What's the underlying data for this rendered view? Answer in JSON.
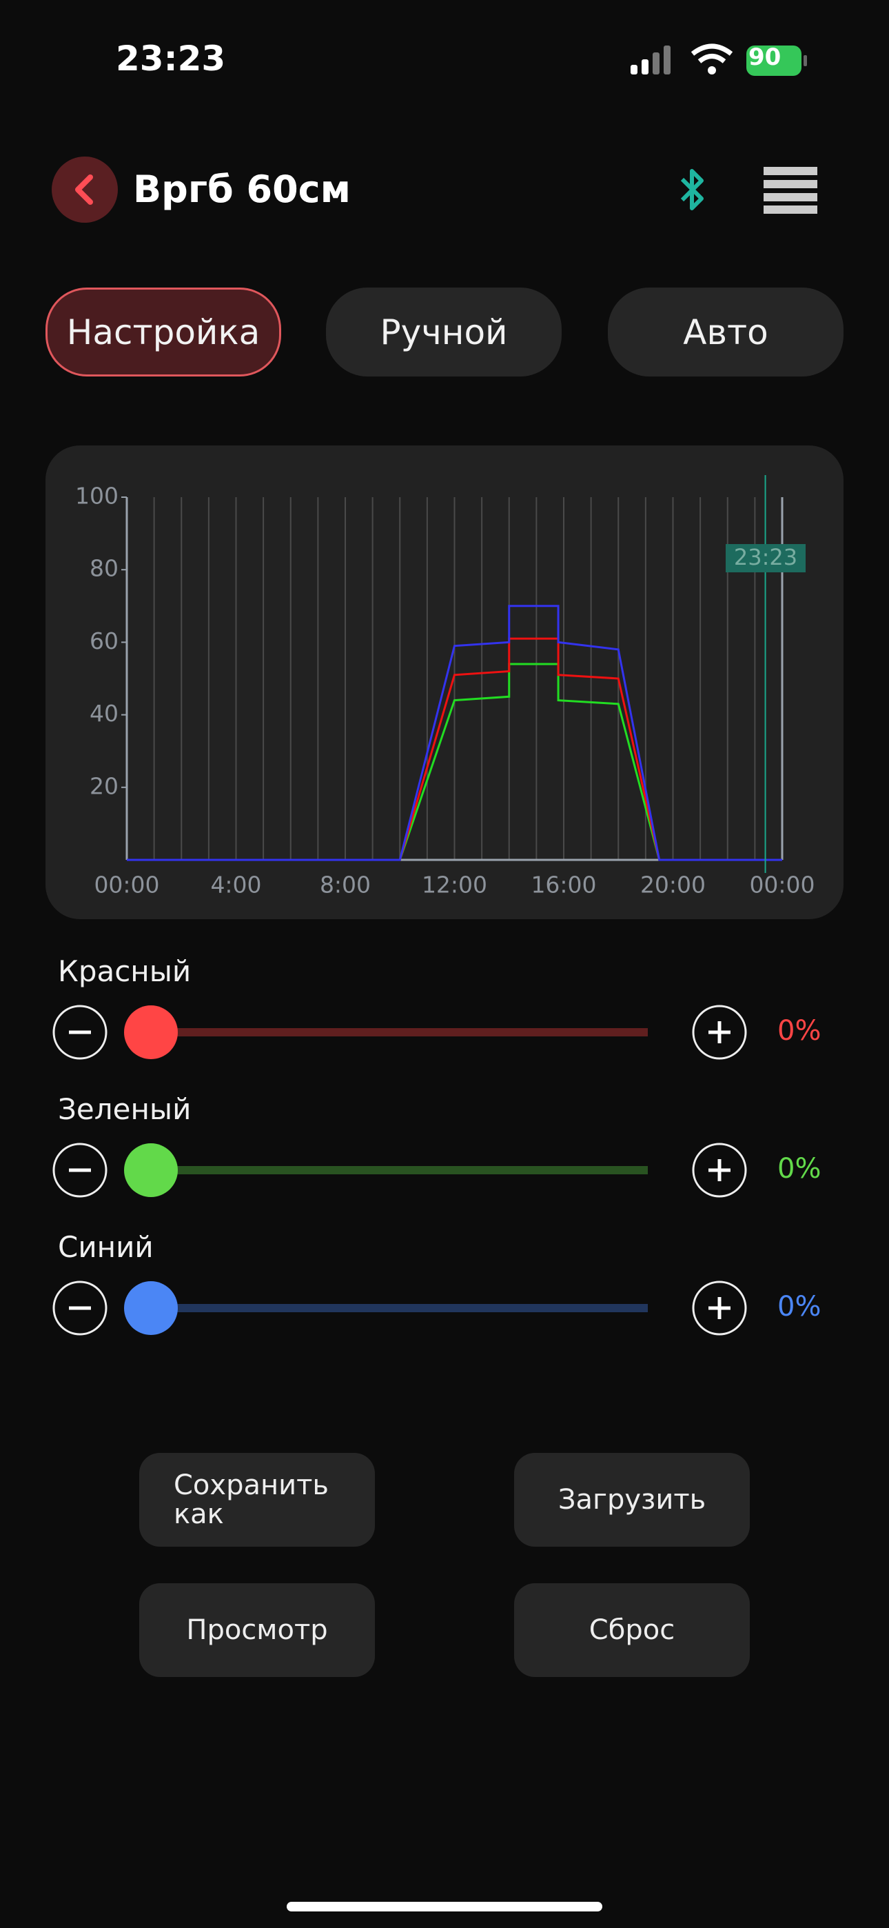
{
  "status_bar": {
    "time": "23:23",
    "battery": "90"
  },
  "header": {
    "title": "Вргб 60см"
  },
  "tabs": [
    {
      "label": "Настройка",
      "active": true
    },
    {
      "label": "Ручной"
    },
    {
      "label": "Авто"
    }
  ],
  "chart": {
    "type": "line",
    "x": [
      0,
      10,
      12,
      14,
      14,
      15.8,
      15.8,
      18,
      19.5,
      24
    ],
    "series": [
      {
        "color": "#22dd22",
        "values": [
          0,
          0,
          44,
          45,
          54,
          54,
          44,
          43,
          0,
          0
        ]
      },
      {
        "color": "#ee1111",
        "values": [
          0,
          0,
          51,
          52,
          61,
          61,
          51,
          50,
          0,
          0
        ]
      },
      {
        "color": "#3333ee",
        "values": [
          0,
          0,
          59,
          60,
          70,
          70,
          60,
          58,
          0,
          0
        ]
      }
    ],
    "xlim": [
      0,
      24
    ],
    "xticks": [
      {
        "value": 0,
        "label": "00:00"
      },
      {
        "value": 1,
        "label": null
      },
      {
        "value": 2,
        "label": null
      },
      {
        "value": 3,
        "label": null
      },
      {
        "value": 4,
        "label": "4:00"
      },
      {
        "value": 5,
        "label": null
      },
      {
        "value": 6,
        "label": null
      },
      {
        "value": 7,
        "label": null
      },
      {
        "value": 8,
        "label": "8:00"
      },
      {
        "value": 9,
        "label": null
      },
      {
        "value": 10,
        "label": null
      },
      {
        "value": 11,
        "label": null
      },
      {
        "value": 12,
        "label": "12:00"
      },
      {
        "value": 13,
        "label": null
      },
      {
        "value": 14,
        "label": null
      },
      {
        "value": 15,
        "label": null
      },
      {
        "value": 16,
        "label": "16:00"
      },
      {
        "value": 17,
        "label": null
      },
      {
        "value": 18,
        "label": null
      },
      {
        "value": 19,
        "label": null
      },
      {
        "value": 20,
        "label": "20:00"
      },
      {
        "value": 21,
        "label": null
      },
      {
        "value": 22,
        "label": null
      },
      {
        "value": 23,
        "label": null
      },
      {
        "value": 24,
        "label": "00:00"
      }
    ],
    "ylim": [
      0,
      100
    ],
    "yticks": [
      20,
      40,
      60,
      80,
      100
    ],
    "grid": "x",
    "now": {
      "value": 23.383,
      "label": "23:23"
    }
  },
  "sliders": [
    {
      "label": "Красный",
      "color": "#ff4545",
      "value": 0,
      "value_label": "0%"
    },
    {
      "label": "Зеленый",
      "color": "#62d94a",
      "value": 0,
      "value_label": "0%"
    },
    {
      "label": "Синий",
      "color": "#4b86f5",
      "value": 0,
      "value_label": "0%"
    }
  ],
  "buttons": [
    "Сохранить как",
    "Загрузить",
    "Просмотр",
    "Сброс"
  ]
}
